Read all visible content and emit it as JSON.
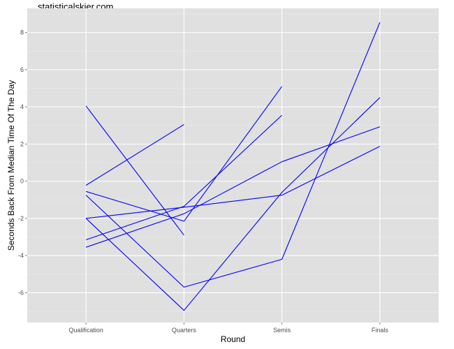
{
  "watermark": "statisticalskier.com",
  "colors": {
    "panel": "#e0e0e0",
    "grid_major": "#ffffff",
    "grid_minor": "#ececec",
    "line": "#0000ff"
  },
  "chart_data": {
    "type": "line",
    "title": "",
    "xlabel": "Round",
    "ylabel": "Seconds Back From Median Time Of The Day",
    "categories": [
      "Qualification",
      "Quarters",
      "Semis",
      "Finals"
    ],
    "ylim": [
      -7.6,
      9.3
    ],
    "yticks": [
      -6,
      -4,
      -2,
      0,
      2,
      4,
      6,
      8
    ],
    "grid": true,
    "legend": "none",
    "series": [
      {
        "values": [
          4.05,
          -2.9,
          null,
          null
        ]
      },
      {
        "values": [
          -0.22,
          3.05,
          null,
          null
        ]
      },
      {
        "values": [
          -0.55,
          -2.15,
          5.1,
          null
        ]
      },
      {
        "values": [
          -3.15,
          -1.35,
          3.55,
          null
        ]
      },
      {
        "values": [
          -0.75,
          -5.7,
          -4.2,
          8.55
        ]
      },
      {
        "values": [
          -2.0,
          -6.95,
          -0.6,
          4.5
        ]
      },
      {
        "values": [
          -3.55,
          -1.75,
          1.05,
          2.93
        ]
      },
      {
        "values": [
          -2.0,
          -1.4,
          -0.75,
          1.88
        ]
      }
    ]
  }
}
